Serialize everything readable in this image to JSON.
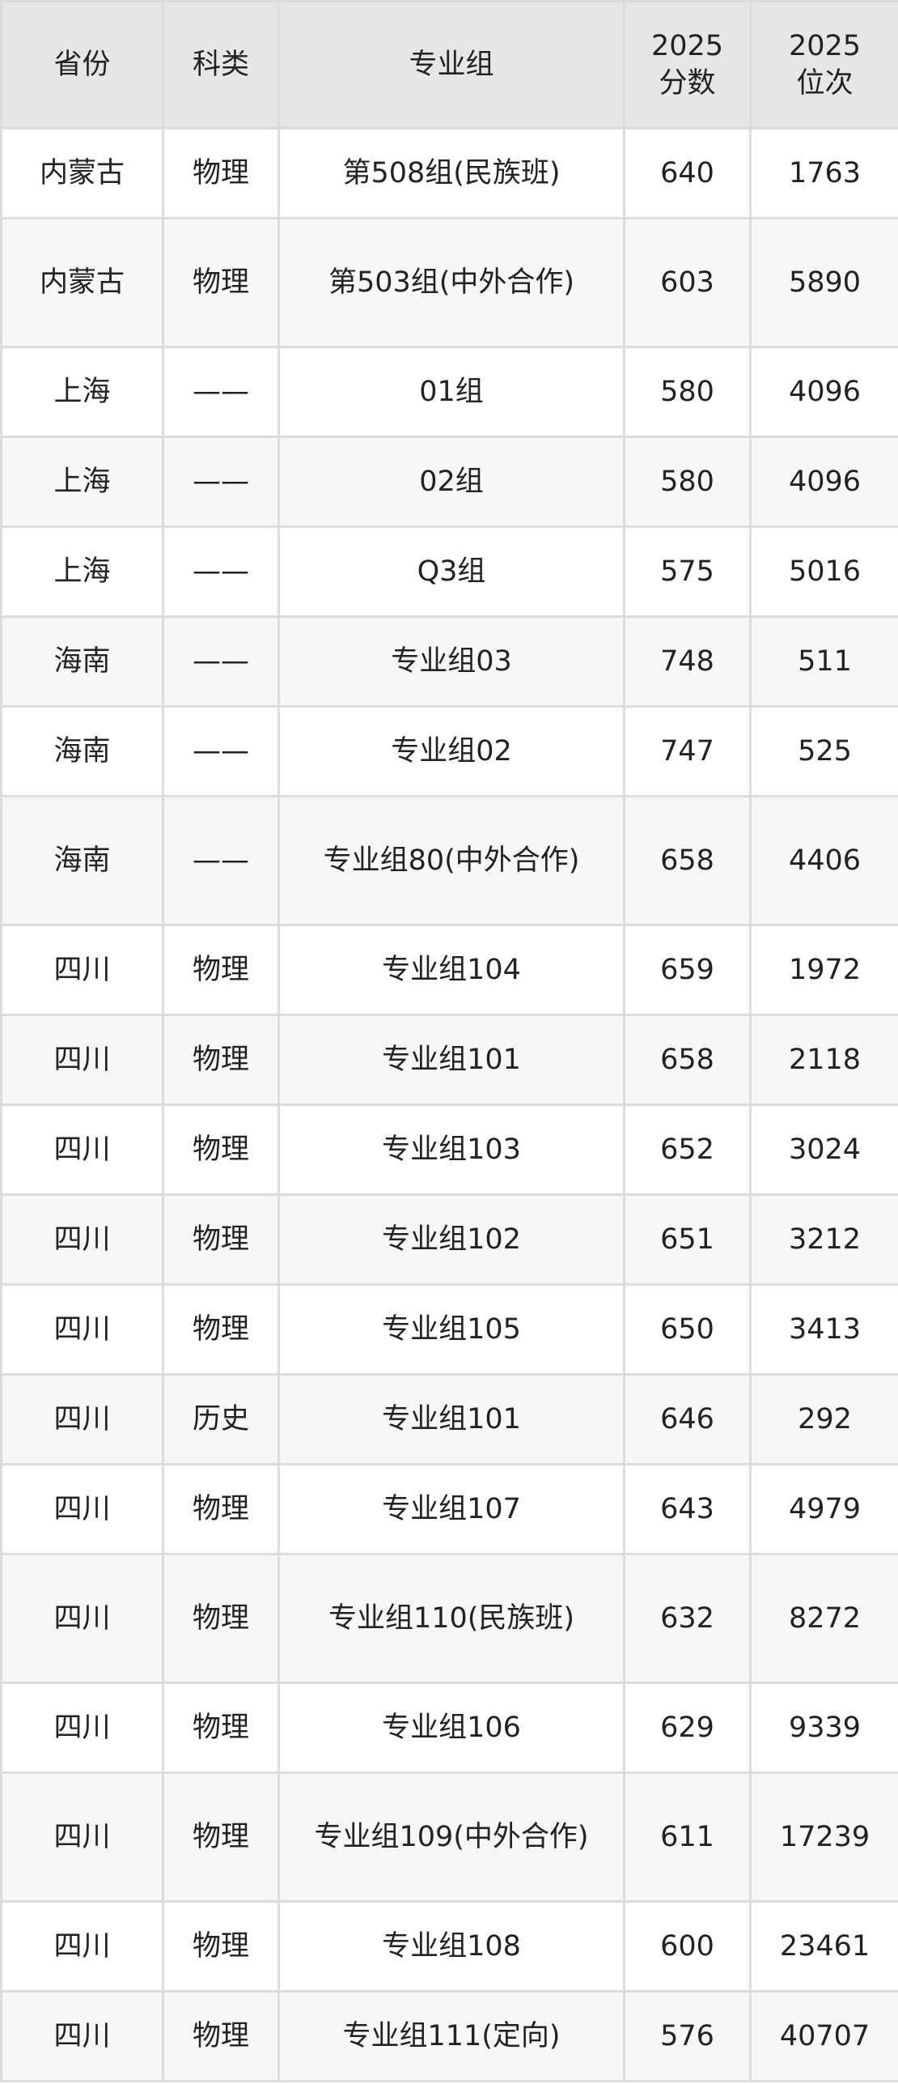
{
  "table": {
    "headers": [
      "省份",
      "科类",
      "专业组",
      "2025分数",
      "2025位次"
    ],
    "header_lines": [
      [
        "省份"
      ],
      [
        "科类"
      ],
      [
        "专业组"
      ],
      [
        "2025",
        "分数"
      ],
      [
        "2025",
        "位次"
      ]
    ],
    "rows": [
      [
        "内蒙古",
        "物理",
        "第508组(民族班)",
        "640",
        "1763"
      ],
      [
        "内蒙古",
        "物理",
        "第503组(中外合作)",
        "603",
        "5890"
      ],
      [
        "上海",
        "——",
        "01组",
        "580",
        "4096"
      ],
      [
        "上海",
        "——",
        "02组",
        "580",
        "4096"
      ],
      [
        "上海",
        "——",
        "Q3组",
        "575",
        "5016"
      ],
      [
        "海南",
        "——",
        "专业组03",
        "748",
        "511"
      ],
      [
        "海南",
        "——",
        "专业组02",
        "747",
        "525"
      ],
      [
        "海南",
        "——",
        "专业组80(中外合作)",
        "658",
        "4406"
      ],
      [
        "四川",
        "物理",
        "专业组104",
        "659",
        "1972"
      ],
      [
        "四川",
        "物理",
        "专业组101",
        "658",
        "2118"
      ],
      [
        "四川",
        "物理",
        "专业组103",
        "652",
        "3024"
      ],
      [
        "四川",
        "物理",
        "专业组102",
        "651",
        "3212"
      ],
      [
        "四川",
        "物理",
        "专业组105",
        "650",
        "3413"
      ],
      [
        "四川",
        "历史",
        "专业组101",
        "646",
        "292"
      ],
      [
        "四川",
        "物理",
        "专业组107",
        "643",
        "4979"
      ],
      [
        "四川",
        "物理",
        "专业组110(民族班)",
        "632",
        "8272"
      ],
      [
        "四川",
        "物理",
        "专业组106",
        "629",
        "9339"
      ],
      [
        "四川",
        "物理",
        "专业组109(中外合作)",
        "611",
        "17239"
      ],
      [
        "四川",
        "物理",
        "专业组108",
        "600",
        "23461"
      ],
      [
        "四川",
        "物理",
        "专业组111(定向)",
        "576",
        "40707"
      ]
    ]
  },
  "colors": {
    "header_bg": "#e6e6e6",
    "stripe_bg": "#f7f7f7",
    "border": "#dcdcdc"
  }
}
